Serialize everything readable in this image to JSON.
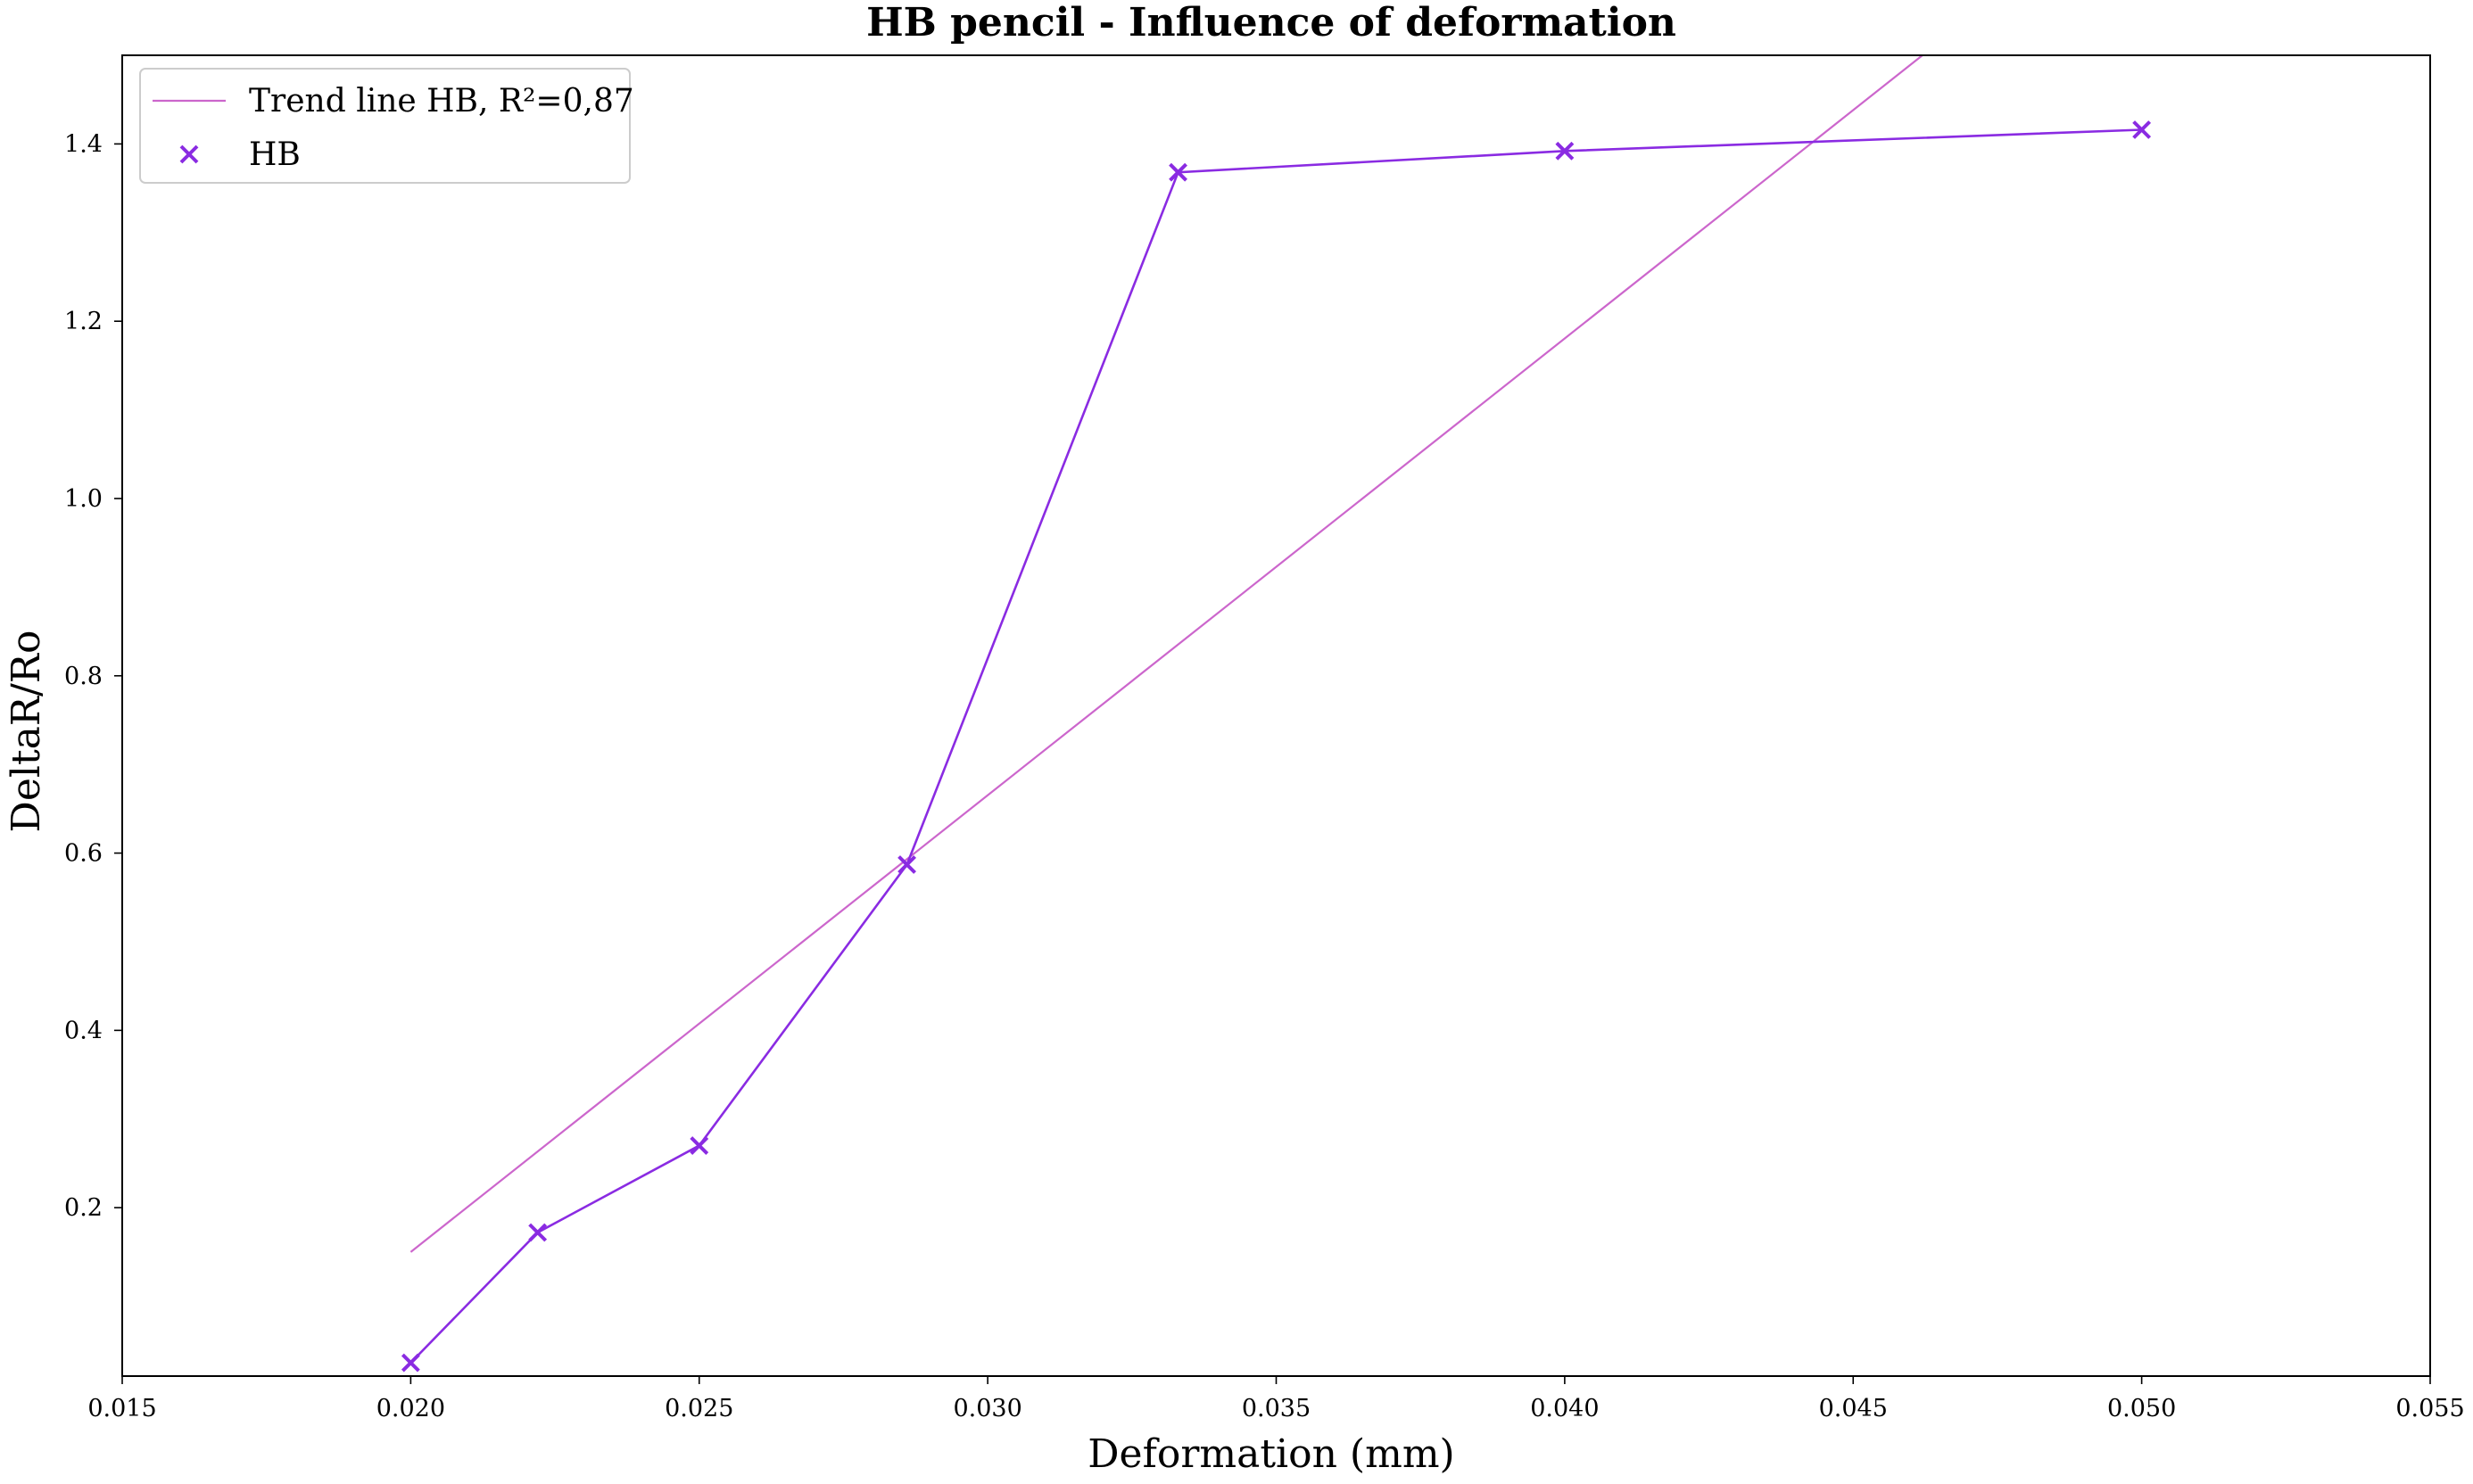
{
  "chart_data": {
    "type": "line",
    "title": "HB pencil - Influence of deformation",
    "xlabel": "Deformation (mm)",
    "ylabel": "DeltaR/Ro",
    "xlim": [
      0.015,
      0.055
    ],
    "ylim": [
      0.01,
      1.5
    ],
    "xticks": [
      "0.015",
      "0.020",
      "0.025",
      "0.030",
      "0.035",
      "0.040",
      "0.045",
      "0.050",
      "0.055"
    ],
    "xtick_values": [
      0.015,
      0.02,
      0.025,
      0.03,
      0.035,
      0.04,
      0.045,
      0.05,
      0.055
    ],
    "yticks": [
      "0.2",
      "0.4",
      "0.6",
      "0.8",
      "1.0",
      "1.2",
      "1.4"
    ],
    "ytick_values": [
      0.2,
      0.4,
      0.6,
      0.8,
      1.0,
      1.2,
      1.4
    ],
    "grid": false,
    "legend_position": "top-left",
    "series": [
      {
        "name": "Trend line HB, R²=0,87",
        "kind": "line",
        "color": "#cc66cc",
        "x": [
          0.02,
          0.0462
        ],
        "y": [
          0.15,
          1.5
        ]
      },
      {
        "name": "HB",
        "kind": "scatter+line",
        "marker": "x",
        "color": "#8a2be2",
        "x": [
          0.02,
          0.0222,
          0.025,
          0.0286,
          0.0333,
          0.04,
          0.05
        ],
        "y": [
          0.025,
          0.172,
          0.27,
          0.587,
          1.368,
          1.392,
          1.416
        ]
      }
    ]
  }
}
